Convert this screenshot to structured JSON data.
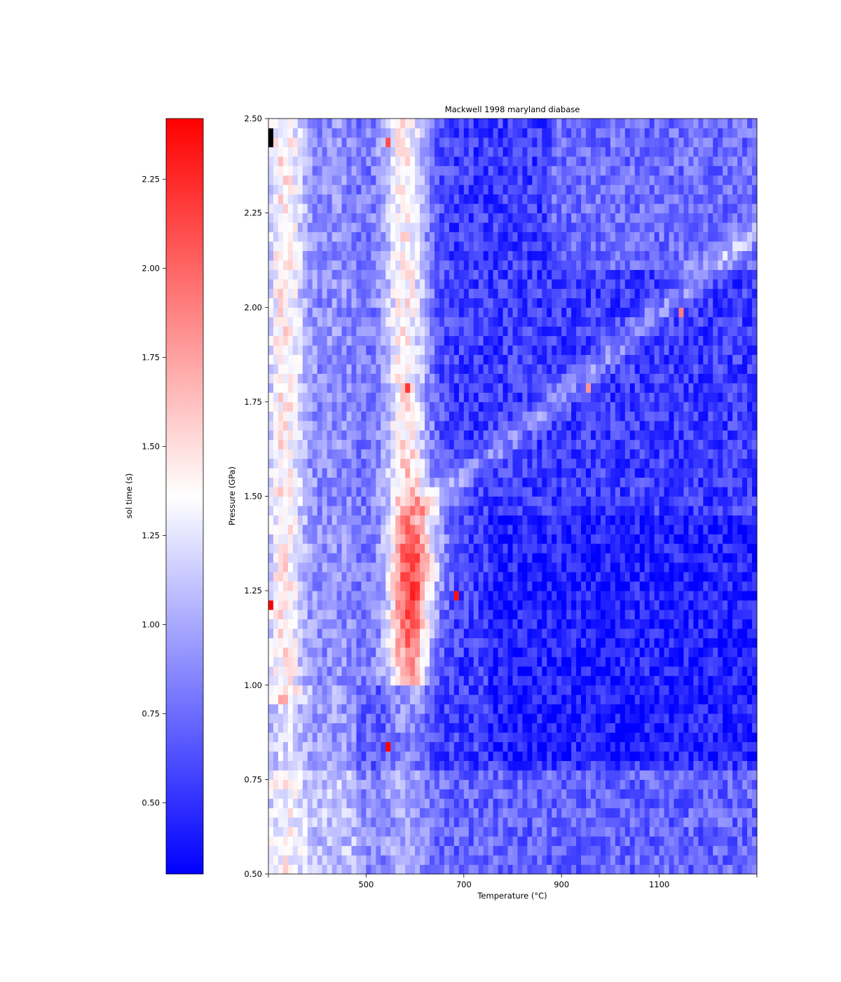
{
  "chart_data": {
    "type": "heatmap",
    "title": "Mackwell 1998 maryland diabase",
    "xlabel": "Temperature (°C)",
    "ylabel": "Pressure (GPa)",
    "xlim": [
      300,
      1300
    ],
    "ylim": [
      0.5,
      2.5
    ],
    "x_ticks": [
      500,
      700,
      900,
      1100
    ],
    "y_ticks": [
      0.5,
      0.75,
      1.0,
      1.25,
      1.5,
      1.75,
      2.0,
      2.25,
      2.5
    ],
    "grid": {
      "nx": 100,
      "ny": 80
    },
    "colormap": "bwr",
    "colormap_colors": {
      "low": "#0000ff",
      "mid": "#ffffff",
      "high": "#ff0000",
      "missing": "#000000"
    },
    "colorbar": {
      "label": "sol time (s)",
      "range": [
        0.3,
        2.42
      ],
      "ticks": [
        0.5,
        0.75,
        1.0,
        1.25,
        1.5,
        1.75,
        2.0,
        2.25
      ]
    },
    "value_description": "Approximate solution time per (temperature, pressure) cell: values around 1.2-1.6 s in a band near 300-380 °C and a ridge near 540-650 °C (peaks ~2.2-2.4 s at 1.1-1.45 GPa), a diagonal lighter ridge from ~700 °C at 1.5 GPa to ~1200 °C at 2.1 GPa, and 0.4-0.7 s elsewhere",
    "notable_cells": [
      {
        "T": 307,
        "P": 2.46,
        "value": null
      },
      {
        "T": 307,
        "P": 1.21,
        "value": 2.42
      },
      {
        "T": 543,
        "P": 0.84,
        "value": 2.4
      },
      {
        "T": 683,
        "P": 1.24,
        "value": 2.35
      },
      {
        "T": 588,
        "P": 1.79,
        "value": 2.2
      },
      {
        "T": 1144,
        "P": 1.99,
        "value": 1.9
      },
      {
        "T": 957,
        "P": 1.79,
        "value": 1.8
      },
      {
        "T": 543,
        "P": 2.44,
        "value": 2.1
      }
    ]
  }
}
